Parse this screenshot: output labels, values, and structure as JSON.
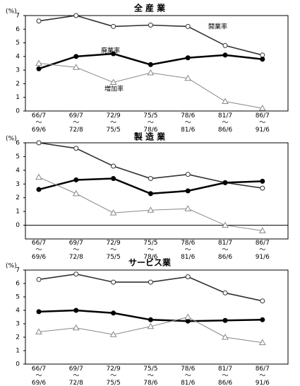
{
  "chart_data": [
    {
      "type": "line",
      "title": "全 産 業",
      "ylabel": "(%)",
      "categories": [
        "66/7～69/6",
        "69/7～72/8",
        "72/9～75/5",
        "75/5～78/6",
        "78/6～81/6",
        "81/7～86/6",
        "86/7～91/6"
      ],
      "ylim": [
        0,
        7
      ],
      "yticks": [
        0,
        1,
        2,
        3,
        4,
        5,
        6,
        7
      ],
      "zero_line": false,
      "series": [
        {
          "name": "開業率",
          "color": "#333333",
          "marker": "open-circle",
          "values": [
            6.6,
            7.0,
            6.2,
            6.3,
            6.2,
            4.8,
            4.1
          ]
        },
        {
          "name": "廃業率",
          "color": "#000000",
          "marker": "filled-circle",
          "values": [
            3.1,
            4.0,
            4.2,
            3.4,
            3.9,
            4.1,
            3.8
          ]
        },
        {
          "name": "増加率",
          "color": "#888888",
          "marker": "open-triangle",
          "values": [
            3.5,
            3.2,
            2.1,
            2.8,
            2.4,
            0.7,
            0.2
          ]
        }
      ]
    },
    {
      "type": "line",
      "title": "製 造 業",
      "ylabel": "(%)",
      "categories": [
        "66/7～69/6",
        "69/7～72/8",
        "72/9～75/5",
        "75/5～78/6",
        "78/6～81/6",
        "81/7～86/6",
        "86/7～91/6"
      ],
      "ylim": [
        -1,
        6
      ],
      "yticks": [
        0,
        1,
        2,
        3,
        4,
        5,
        6
      ],
      "zero_line": true,
      "series": [
        {
          "color": "#333333",
          "marker": "open-circle",
          "values": [
            6.0,
            5.6,
            4.3,
            3.4,
            3.7,
            3.1,
            2.7
          ]
        },
        {
          "color": "#000000",
          "marker": "filled-circle",
          "values": [
            2.6,
            3.3,
            3.4,
            2.3,
            2.5,
            3.1,
            3.2
          ]
        },
        {
          "color": "#888888",
          "marker": "open-triangle",
          "values": [
            3.5,
            2.3,
            0.9,
            1.1,
            1.2,
            0.0,
            -0.4
          ]
        }
      ]
    },
    {
      "type": "line",
      "title": "サービス業",
      "ylabel": "(%)",
      "categories": [
        "66/7～69/6",
        "69/7～72/8",
        "72/9～75/5",
        "75/5～78/6",
        "78/6～81/6",
        "81/7～86/6",
        "86/7～91/6"
      ],
      "ylim": [
        0,
        7
      ],
      "yticks": [
        0,
        1,
        2,
        3,
        4,
        5,
        6,
        7
      ],
      "zero_line": false,
      "series": [
        {
          "color": "#333333",
          "marker": "open-circle",
          "values": [
            6.3,
            6.7,
            6.1,
            6.1,
            6.5,
            5.3,
            4.7
          ]
        },
        {
          "color": "#000000",
          "marker": "filled-circle",
          "values": [
            3.9,
            4.0,
            3.8,
            3.3,
            3.2,
            3.25,
            3.3
          ]
        },
        {
          "color": "#888888",
          "marker": "open-triangle",
          "values": [
            2.4,
            2.7,
            2.2,
            2.8,
            3.5,
            2.0,
            1.6
          ]
        }
      ]
    }
  ]
}
